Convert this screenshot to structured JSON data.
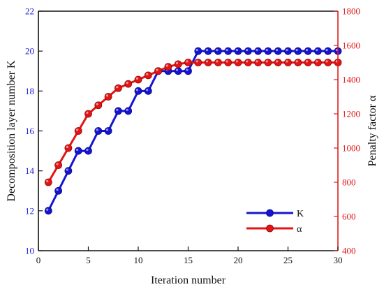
{
  "chart_data": {
    "type": "line",
    "xlabel": "Iteration number",
    "ylabel_left": "Decomposition layer number K",
    "ylabel_right": "Penalty factor α",
    "xlim": [
      0,
      30
    ],
    "xticks": [
      "0",
      "5",
      "10",
      "15",
      "20",
      "25",
      "30"
    ],
    "ylim_left": [
      10,
      22
    ],
    "yticks_left": [
      "10",
      "12",
      "14",
      "16",
      "18",
      "20",
      "22"
    ],
    "ylim_right": [
      400,
      1800
    ],
    "yticks_right": [
      "400",
      "600",
      "800",
      "1000",
      "1200",
      "1400",
      "1600",
      "1800"
    ],
    "x": [
      1,
      2,
      3,
      4,
      5,
      6,
      7,
      8,
      9,
      10,
      11,
      12,
      13,
      14,
      15,
      16,
      17,
      18,
      19,
      20,
      21,
      22,
      23,
      24,
      25,
      26,
      27,
      28,
      29,
      30
    ],
    "legend_position": "bottom-right",
    "series": [
      {
        "name": "K",
        "axis": "left",
        "color": "#1414d4",
        "values": [
          12,
          13,
          14,
          15,
          15,
          16,
          16,
          17,
          17,
          18,
          18,
          19,
          19,
          19,
          19,
          20,
          20,
          20,
          20,
          20,
          20,
          20,
          20,
          20,
          20,
          20,
          20,
          20,
          20,
          20
        ]
      },
      {
        "name": "α",
        "axis": "right",
        "color": "#e41414",
        "values": [
          800,
          900,
          1000,
          1100,
          1200,
          1250,
          1300,
          1350,
          1375,
          1400,
          1425,
          1450,
          1475,
          1490,
          1500,
          1500,
          1500,
          1500,
          1500,
          1500,
          1500,
          1500,
          1500,
          1500,
          1500,
          1500,
          1500,
          1500,
          1500,
          1500
        ]
      }
    ]
  }
}
